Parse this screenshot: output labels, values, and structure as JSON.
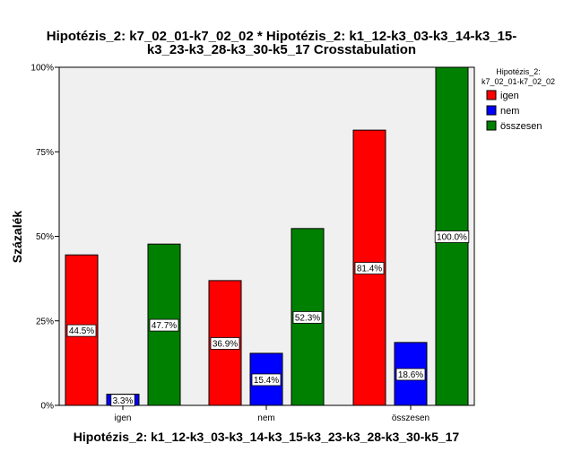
{
  "chart_data": {
    "type": "bar",
    "title_lines": [
      "Hipotézis_2: k7_02_01-k7_02_02 * Hipotézis_2: k1_12-k3_03-k3_14-k3_15-",
      "k3_23-k3_28-k3_30-k5_17 Crosstabulation"
    ],
    "xlabel": "Hipotézis_2: k1_12-k3_03-k3_14-k3_15-k3_23-k3_28-k3_30-k5_17",
    "ylabel": "Százalék",
    "categories": [
      "igen",
      "nem",
      "összesen"
    ],
    "yticks": [
      "0%",
      "25%",
      "50%",
      "75%",
      "100%"
    ],
    "ylim": [
      0,
      100
    ],
    "grid": false,
    "legend": {
      "title_lines": [
        "Hipotézis_2:",
        "k7_02_01-k7_02_02"
      ],
      "placement": "top-right"
    },
    "series": [
      {
        "name": "igen",
        "color": "#ff0000",
        "values": [
          44.5,
          36.9,
          81.4
        ],
        "labels": [
          "44.5%",
          "36.9%",
          "81.4%"
        ]
      },
      {
        "name": "nem",
        "color": "#0000ff",
        "values": [
          3.3,
          15.4,
          18.6
        ],
        "labels": [
          "3.3%",
          "15.4%",
          "18.6%"
        ]
      },
      {
        "name": "összesen",
        "color": "#008000",
        "values": [
          47.7,
          52.3,
          100.0
        ],
        "labels": [
          "47.7%",
          "52.3%",
          "100.0%"
        ]
      }
    ],
    "plot_background": "#f0f0f0"
  }
}
